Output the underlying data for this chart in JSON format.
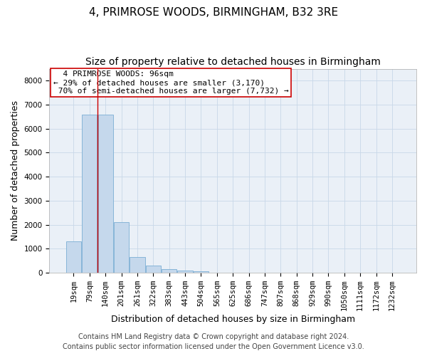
{
  "title1": "4, PRIMROSE WOODS, BIRMINGHAM, B32 3RE",
  "title2": "Size of property relative to detached houses in Birmingham",
  "xlabel": "Distribution of detached houses by size in Birmingham",
  "ylabel": "Number of detached properties",
  "categories": [
    "19sqm",
    "79sqm",
    "140sqm",
    "201sqm",
    "261sqm",
    "322sqm",
    "383sqm",
    "443sqm",
    "504sqm",
    "565sqm",
    "625sqm",
    "686sqm",
    "747sqm",
    "807sqm",
    "868sqm",
    "929sqm",
    "990sqm",
    "1050sqm",
    "1111sqm",
    "1172sqm",
    "1232sqm"
  ],
  "values": [
    1300,
    6600,
    6600,
    2100,
    650,
    300,
    150,
    100,
    50,
    0,
    0,
    0,
    0,
    0,
    0,
    0,
    0,
    0,
    0,
    0,
    0
  ],
  "bar_color": "#c5d8ec",
  "bar_edge_color": "#7aaed4",
  "vline_x": 1.5,
  "vline_color": "#cc0000",
  "annotation_text": "  4 PRIMROSE WOODS: 96sqm  \n← 29% of detached houses are smaller (3,170)\n 70% of semi-detached houses are larger (7,732) →",
  "annotation_box_color": "white",
  "annotation_box_edge_color": "#cc0000",
  "ylim": [
    0,
    8500
  ],
  "yticks": [
    0,
    1000,
    2000,
    3000,
    4000,
    5000,
    6000,
    7000,
    8000
  ],
  "bg_color": "#eaf0f7",
  "footer1": "Contains HM Land Registry data © Crown copyright and database right 2024.",
  "footer2": "Contains public sector information licensed under the Open Government Licence v3.0.",
  "title_fontsize": 11,
  "subtitle_fontsize": 10,
  "axis_label_fontsize": 9,
  "tick_fontsize": 7.5,
  "annotation_fontsize": 8,
  "footer_fontsize": 7
}
